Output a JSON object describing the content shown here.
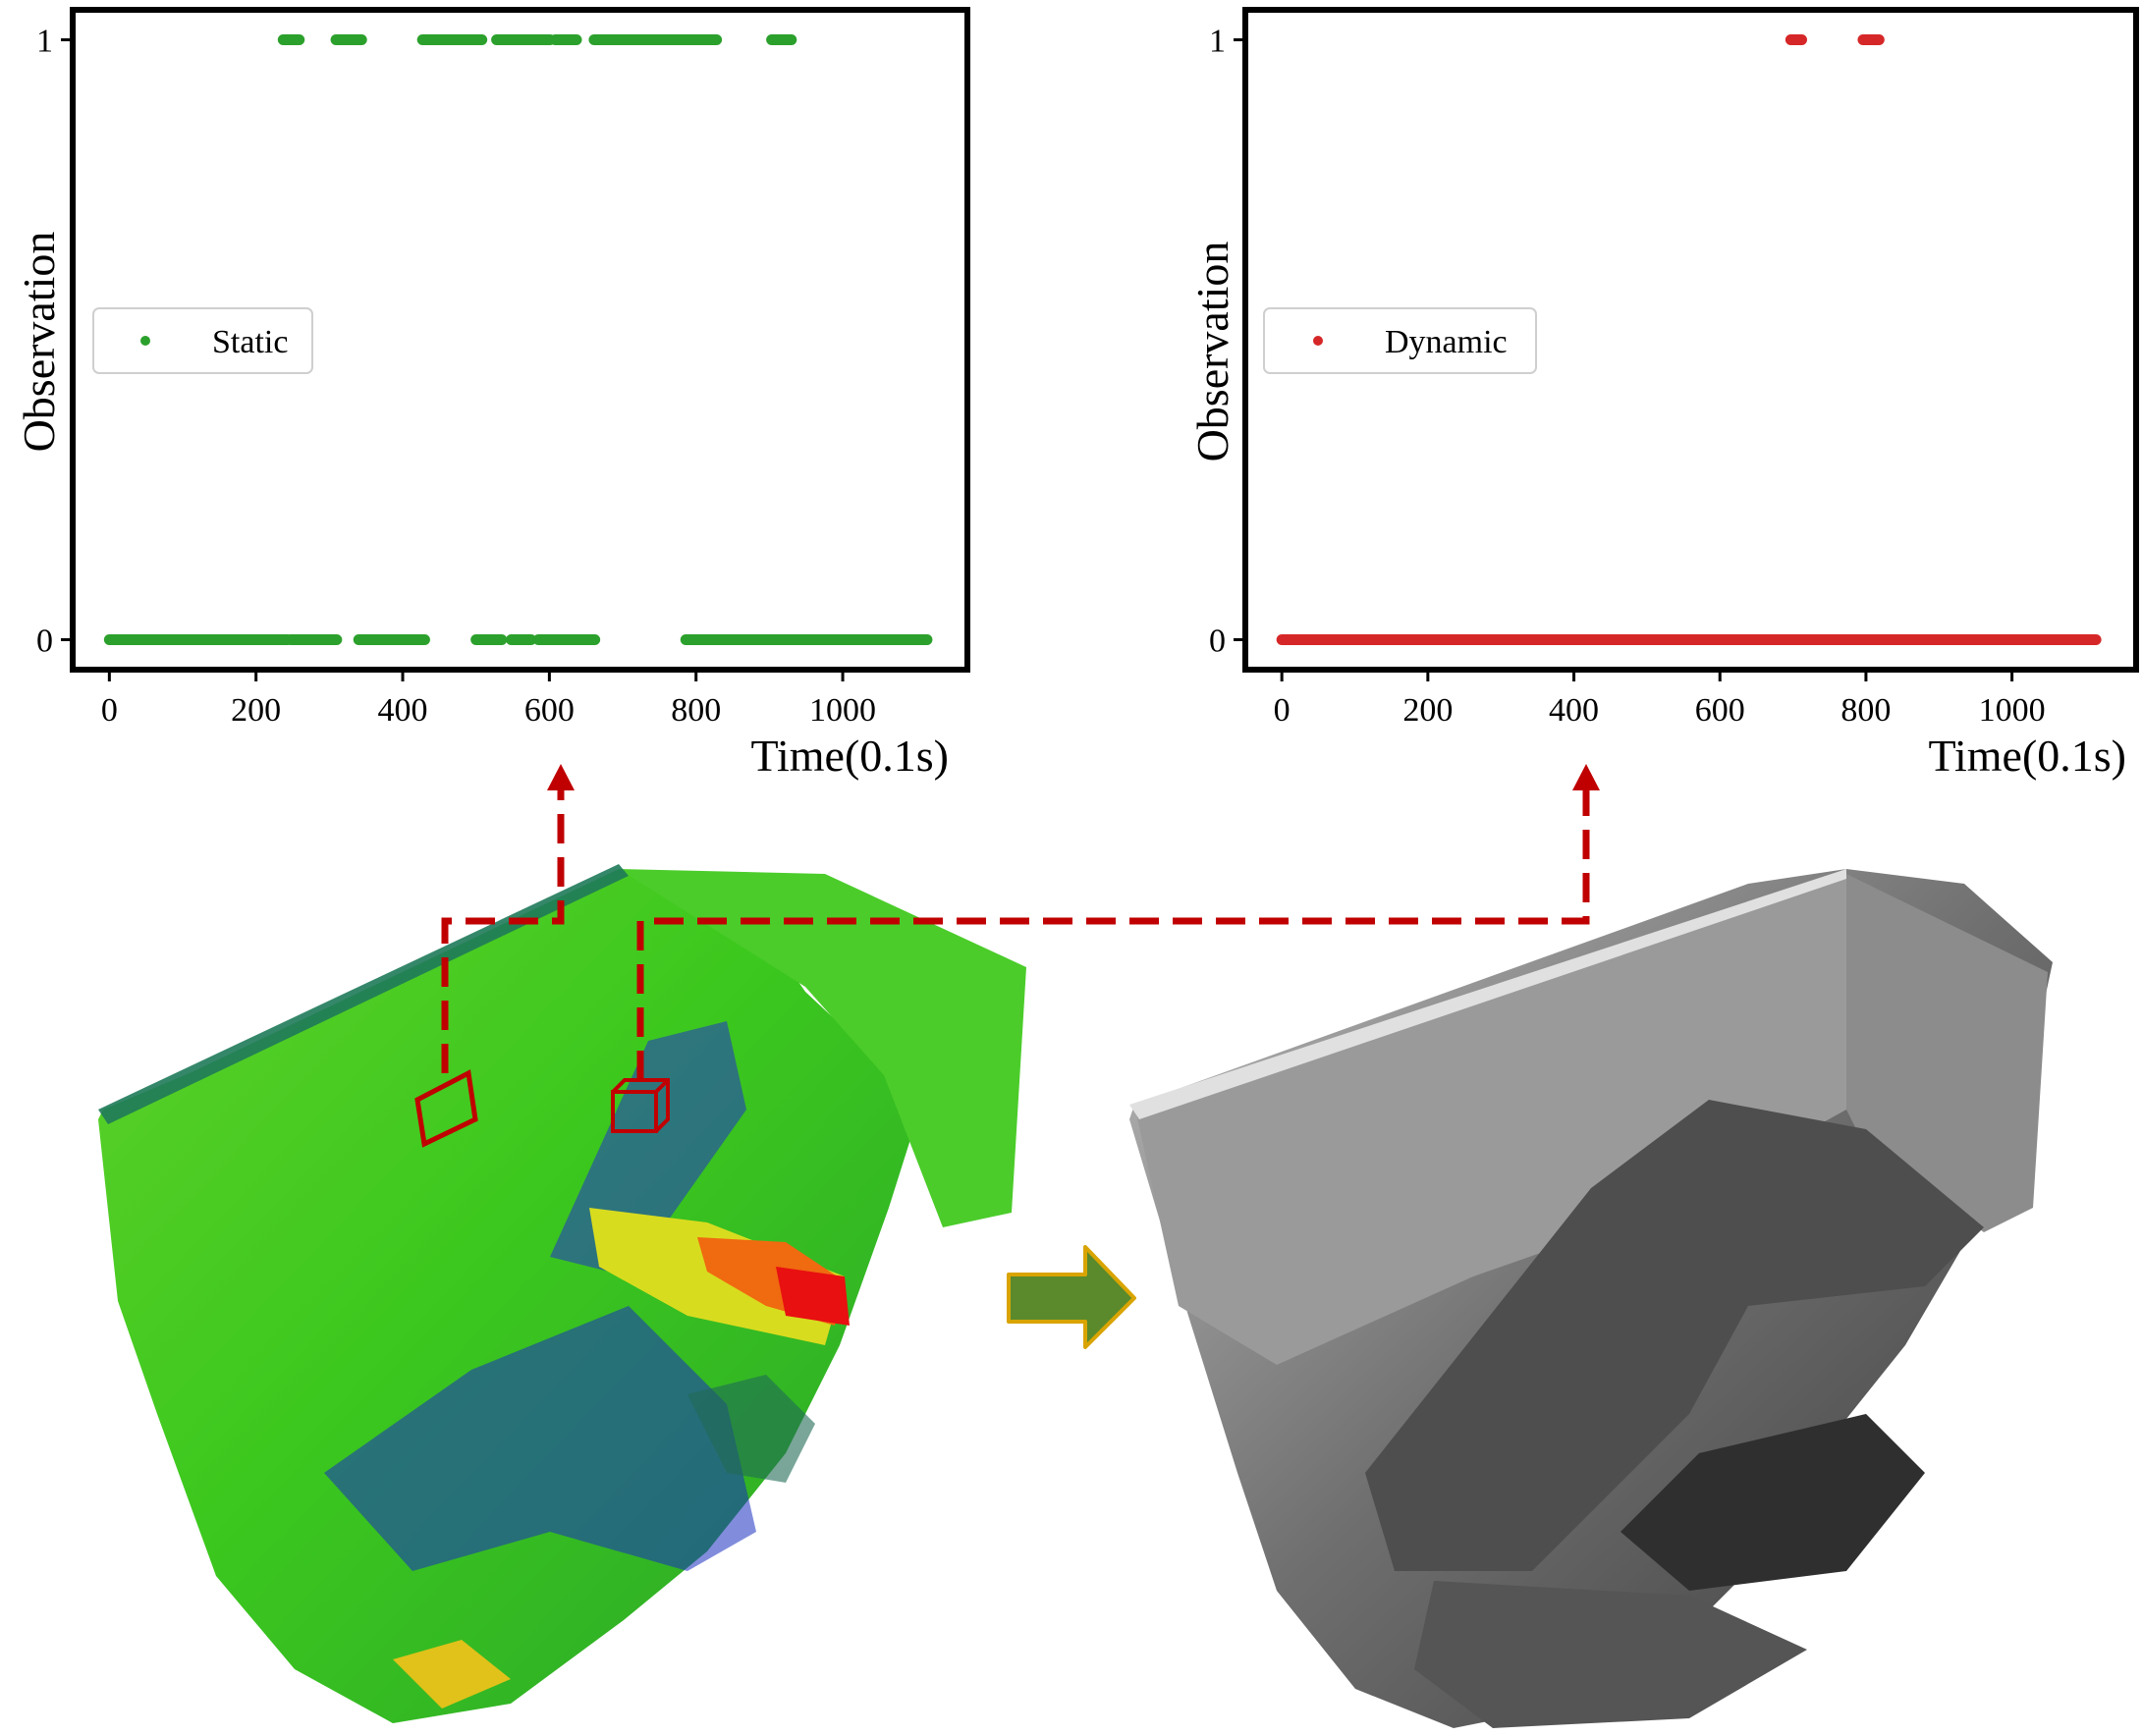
{
  "colors": {
    "static": "#2ca02c",
    "dynamic": "#d62728",
    "connector": "#c00000",
    "arrow_fill": "#5a8a2c",
    "arrow_stroke": "#d9a400"
  },
  "images": {
    "left": "colored-voxel-point-cloud-of-staircase",
    "right": "grayscale-cleaned-point-cloud-of-staircase",
    "arrow_icon": "right-arrow-icon"
  },
  "chart_data": [
    {
      "type": "scatter",
      "title": "",
      "xlabel": "Time(0.1s)",
      "ylabel": "Observation",
      "xlim": [
        -50,
        1170
      ],
      "ylim": [
        -0.05,
        1.05
      ],
      "xticks": [
        0,
        200,
        400,
        600,
        800,
        1000
      ],
      "yticks": [
        0,
        1
      ],
      "grid": false,
      "legend": {
        "position": "center-left"
      },
      "series": [
        {
          "name": "Static",
          "color": "#2ca02c",
          "segments_y1": [
            [
              237,
              259
            ],
            [
              309,
              344
            ],
            [
              427,
              508
            ],
            [
              528,
              601
            ],
            [
              608,
              637
            ],
            [
              661,
              828
            ],
            [
              903,
              930
            ]
          ],
          "segments_y0": [
            [
              0,
              243
            ],
            [
              247,
              310
            ],
            [
              340,
              430
            ],
            [
              500,
              535
            ],
            [
              548,
              575
            ],
            [
              585,
              662
            ],
            [
              786,
              1115
            ]
          ]
        }
      ]
    },
    {
      "type": "scatter",
      "title": "",
      "xlabel": "Time(0.1s)",
      "ylabel": "Observation",
      "xlim": [
        -50,
        1170
      ],
      "ylim": [
        -0.05,
        1.05
      ],
      "xticks": [
        0,
        200,
        400,
        600,
        800,
        1000
      ],
      "yticks": [
        0,
        1
      ],
      "grid": false,
      "legend": {
        "position": "center-left"
      },
      "series": [
        {
          "name": "Dynamic",
          "color": "#d62728",
          "segments_y1": [
            [
              697,
              712
            ],
            [
              796,
              818
            ]
          ],
          "segments_y0": [
            [
              0,
              1115
            ]
          ]
        }
      ]
    }
  ]
}
